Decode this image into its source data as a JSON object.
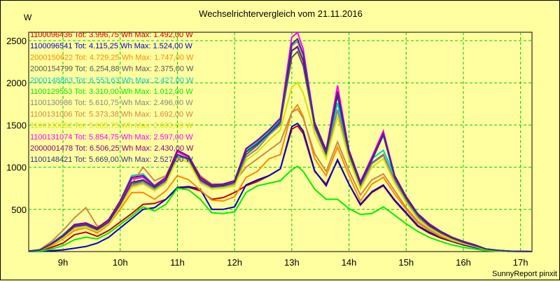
{
  "chart_data": {
    "type": "line",
    "title": "Wechselrichtervergleich vom 21.11.2016",
    "ylabel": "W",
    "xlabel": "",
    "footer": "SunnyReport pinxit",
    "ylim": [
      0,
      2600
    ],
    "xlim": [
      8.4,
      17.2
    ],
    "y_ticks": [
      500,
      1000,
      1500,
      2000,
      2500
    ],
    "y_tick_labels": [
      "500",
      "1000",
      "1500",
      "2000",
      "2500"
    ],
    "x_ticks": [
      9,
      10,
      11,
      12,
      13,
      14,
      15,
      16,
      17
    ],
    "x_tick_labels": [
      "9h",
      "10h",
      "11h",
      "12h",
      "13h",
      "14h",
      "15h",
      "16h",
      "17h"
    ],
    "grid": true,
    "legend_position": "top-left",
    "x": [
      8.4,
      8.6,
      8.8,
      9.0,
      9.2,
      9.4,
      9.6,
      9.8,
      10.0,
      10.2,
      10.4,
      10.6,
      10.8,
      11.0,
      11.2,
      11.4,
      11.6,
      11.8,
      12.0,
      12.2,
      12.4,
      12.6,
      12.8,
      13.0,
      13.1,
      13.2,
      13.4,
      13.6,
      13.8,
      14.0,
      14.2,
      14.4,
      14.6,
      14.8,
      15.0,
      15.2,
      15.4,
      15.6,
      15.8,
      16.0,
      16.2,
      16.4,
      16.6,
      16.8,
      17.0,
      17.2
    ],
    "series": [
      {
        "name": "1100096436",
        "label": "1100096436 Tot: 3.996,75 Wh Max: 1.492,00 W",
        "color": "#cc0000",
        "values": [
          5,
          10,
          50,
          100,
          200,
          230,
          180,
          250,
          350,
          450,
          560,
          570,
          620,
          750,
          760,
          720,
          620,
          640,
          700,
          780,
          830,
          900,
          980,
          1450,
          1490,
          1400,
          950,
          800,
          1080,
          800,
          550,
          700,
          780,
          600,
          450,
          300,
          220,
          160,
          120,
          80,
          50,
          20,
          10,
          5,
          2,
          0
        ]
      },
      {
        "name": "1100096541",
        "label": "1100096541 Tot: 4.115,25 Wh Max: 1.524,00 W",
        "color": "#0000cc",
        "values": [
          0,
          2,
          10,
          20,
          40,
          60,
          100,
          170,
          280,
          390,
          500,
          520,
          620,
          760,
          770,
          740,
          500,
          500,
          530,
          790,
          850,
          900,
          980,
          1480,
          1520,
          1430,
          960,
          780,
          1090,
          800,
          560,
          710,
          790,
          610,
          460,
          310,
          230,
          170,
          120,
          80,
          50,
          20,
          10,
          5,
          2,
          0
        ]
      },
      {
        "name": "2000150622",
        "label": "2000150622 Tot: 4.729,25 Wh Max: 1.747,00 W",
        "color": "#ff8800",
        "values": [
          5,
          15,
          70,
          150,
          250,
          280,
          220,
          320,
          500,
          700,
          700,
          620,
          720,
          900,
          850,
          730,
          610,
          600,
          650,
          880,
          950,
          1100,
          1150,
          1650,
          1740,
          1600,
          1100,
          900,
          1240,
          900,
          600,
          800,
          880,
          680,
          500,
          340,
          250,
          180,
          130,
          90,
          60,
          20,
          10,
          5,
          2,
          0
        ]
      },
      {
        "name": "2000154799",
        "label": "2000154799 Tot: 6.254,88 Wh Max: 2.375,00 W",
        "color": "#555555",
        "values": [
          5,
          20,
          90,
          180,
          300,
          320,
          260,
          350,
          560,
          800,
          840,
          760,
          850,
          1150,
          1100,
          850,
          780,
          790,
          820,
          1150,
          1260,
          1400,
          1520,
          2300,
          2370,
          2200,
          1480,
          1150,
          1680,
          1150,
          780,
          1050,
          1150,
          850,
          620,
          420,
          300,
          220,
          160,
          110,
          70,
          30,
          15,
          5,
          2,
          0
        ]
      },
      {
        "name": "2000148863",
        "label": "2000148863 Tot: 6.553,63 Wh Max: 2.427,00 W",
        "color": "#00cccc",
        "values": [
          5,
          20,
          100,
          200,
          320,
          340,
          280,
          380,
          600,
          900,
          920,
          780,
          880,
          1200,
          1130,
          880,
          790,
          800,
          840,
          1200,
          1300,
          1420,
          1560,
          2380,
          2420,
          2260,
          1530,
          1200,
          1760,
          1200,
          820,
          1100,
          1200,
          900,
          650,
          450,
          330,
          240,
          170,
          120,
          80,
          30,
          15,
          5,
          2,
          0
        ]
      },
      {
        "name": "1100129553",
        "label": "1100129553 Tot: 3.310,00 Wh Max: 1.012,00 W",
        "color": "#00ee00",
        "values": [
          0,
          5,
          30,
          70,
          140,
          170,
          150,
          220,
          320,
          420,
          530,
          480,
          560,
          750,
          730,
          620,
          460,
          450,
          470,
          700,
          780,
          810,
          840,
          970,
          1010,
          950,
          740,
          620,
          620,
          510,
          440,
          450,
          530,
          430,
          330,
          240,
          170,
          120,
          80,
          50,
          30,
          10,
          5,
          2,
          0,
          0
        ]
      },
      {
        "name": "1100130986",
        "label": "1100130986 Tot: 5.610,75 Wh Max: 2.496,00 W",
        "color": "#888888",
        "values": [
          5,
          20,
          85,
          170,
          290,
          310,
          250,
          340,
          540,
          780,
          820,
          740,
          830,
          1130,
          1090,
          830,
          760,
          770,
          800,
          1120,
          1220,
          1380,
          1500,
          2440,
          2490,
          2320,
          1460,
          1140,
          1680,
          1140,
          770,
          1040,
          1140,
          840,
          600,
          410,
          290,
          210,
          150,
          100,
          70,
          30,
          15,
          5,
          2,
          0
        ]
      },
      {
        "name": "1100131006",
        "label": "1100131006 Tot: 5.373,38 Wh Max: 1.692,00 W",
        "color": "#cc8844",
        "values": [
          5,
          25,
          120,
          250,
          400,
          520,
          300,
          330,
          560,
          800,
          1000,
          840,
          900,
          1180,
          1120,
          900,
          800,
          800,
          830,
          1000,
          1100,
          1200,
          1300,
          1650,
          1690,
          1580,
          1160,
          950,
          1300,
          960,
          670,
          850,
          920,
          720,
          520,
          360,
          260,
          190,
          140,
          100,
          70,
          30,
          15,
          5,
          2,
          0
        ]
      },
      {
        "name": "1100130652",
        "label": "1100130652 Tot: 5.065,75 Wh Max: 2.003,00 W",
        "color": "#dddd00",
        "values": [
          5,
          18,
          80,
          160,
          270,
          290,
          240,
          330,
          530,
          760,
          800,
          720,
          810,
          1100,
          1060,
          810,
          740,
          750,
          780,
          1080,
          1180,
          1320,
          1440,
          1950,
          2000,
          1880,
          1400,
          1100,
          1600,
          1100,
          740,
          1000,
          1100,
          810,
          580,
          390,
          280,
          200,
          140,
          100,
          60,
          25,
          10,
          5,
          2,
          0
        ]
      },
      {
        "name": "1100131074",
        "label": "1100131074 Tot: 5.854,75 Wh Max: 2.597,00 W",
        "color": "#ff00ff",
        "values": [
          5,
          20,
          95,
          190,
          310,
          330,
          270,
          370,
          580,
          860,
          880,
          770,
          870,
          1180,
          1120,
          870,
          790,
          800,
          840,
          1220,
          1320,
          1440,
          1580,
          2540,
          2597,
          2400,
          1520,
          1200,
          1970,
          1200,
          830,
          1120,
          1430,
          900,
          650,
          450,
          330,
          240,
          170,
          120,
          80,
          30,
          15,
          5,
          2,
          0
        ]
      },
      {
        "name": "2000001478",
        "label": "2000001478 Tot: 6.506,25 Wh Max: 2.430,00 W",
        "color": "#880088",
        "values": [
          5,
          20,
          95,
          190,
          320,
          340,
          280,
          380,
          600,
          880,
          900,
          780,
          880,
          1200,
          1130,
          880,
          790,
          800,
          840,
          1220,
          1320,
          1440,
          1580,
          2380,
          2430,
          2260,
          1530,
          1200,
          1900,
          1200,
          820,
          1100,
          1400,
          900,
          650,
          450,
          330,
          240,
          170,
          120,
          80,
          30,
          15,
          5,
          2,
          0
        ]
      },
      {
        "name": "1100148421",
        "label": "1100148421 Tot: 5.669,00 Wh Max: 2.527,00 W",
        "color": "#333388",
        "values": [
          5,
          20,
          90,
          180,
          300,
          320,
          260,
          350,
          560,
          820,
          850,
          760,
          850,
          1150,
          1100,
          850,
          770,
          780,
          820,
          1180,
          1280,
          1400,
          1540,
          2460,
          2520,
          2340,
          1490,
          1170,
          1850,
          1170,
          800,
          1080,
          1380,
          880,
          630,
          440,
          310,
          230,
          160,
          110,
          70,
          30,
          15,
          5,
          2,
          0
        ]
      }
    ]
  }
}
